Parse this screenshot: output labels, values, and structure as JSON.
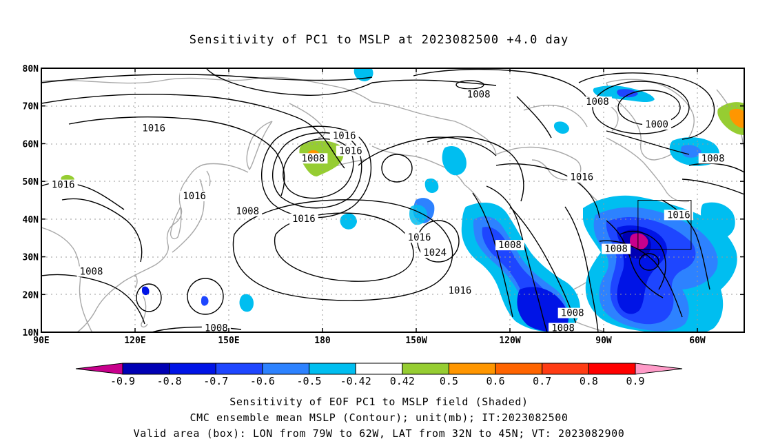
{
  "title": "Sensitivity of PC1 to MSLP at 2023082500 +4.0 day",
  "map": {
    "lat_ticks": [
      "80N",
      "70N",
      "60N",
      "50N",
      "40N",
      "30N",
      "20N",
      "10N"
    ],
    "lon_ticks": [
      "90E",
      "120E",
      "150E",
      "180",
      "150W",
      "120W",
      "90W",
      "60W"
    ],
    "contour_labels": [
      {
        "text": "1008",
        "lon": 230,
        "lat": 73
      },
      {
        "text": "1008",
        "lon": 268,
        "lat": 71
      },
      {
        "text": "1000",
        "lon": 287,
        "lat": 65
      },
      {
        "text": "1016",
        "lon": 126,
        "lat": 64
      },
      {
        "text": "1016",
        "lon": 187,
        "lat": 62
      },
      {
        "text": "1016",
        "lon": 189,
        "lat": 58
      },
      {
        "text": "1008",
        "lon": 177,
        "lat": 56
      },
      {
        "text": "1008",
        "lon": 305,
        "lat": 56
      },
      {
        "text": "1016",
        "lon": 97,
        "lat": 49
      },
      {
        "text": "1016",
        "lon": 139,
        "lat": 46
      },
      {
        "text": "1016",
        "lon": 263,
        "lat": 51
      },
      {
        "text": "1008",
        "lon": 156,
        "lat": 42
      },
      {
        "text": "1016",
        "lon": 174,
        "lat": 40
      },
      {
        "text": "1016",
        "lon": 294,
        "lat": 41
      },
      {
        "text": "1016",
        "lon": 211,
        "lat": 35
      },
      {
        "text": "1008",
        "lon": 240,
        "lat": 33
      },
      {
        "text": "1008",
        "lon": 274,
        "lat": 32
      },
      {
        "text": "1024",
        "lon": 216,
        "lat": 31
      },
      {
        "text": "1008",
        "lon": 106,
        "lat": 26
      },
      {
        "text": "1016",
        "lon": 224,
        "lat": 21
      },
      {
        "text": "1008",
        "lon": 260,
        "lat": 15
      },
      {
        "text": "1008",
        "lon": 257,
        "lat": 11
      },
      {
        "text": "1008",
        "lon": 146,
        "lat": 11
      }
    ],
    "valid_box": {
      "lon_min": 281,
      "lon_max": 298,
      "lat_min": 32,
      "lat_max": 45
    }
  },
  "colorbar": {
    "labels": [
      "-0.9",
      "-0.8",
      "-0.7",
      "-0.6",
      "-0.5",
      "-0.42",
      "0.42",
      "0.5",
      "0.6",
      "0.7",
      "0.8",
      "0.9"
    ],
    "colors": [
      "#c8008c",
      "#0000b4",
      "#0014e6",
      "#1e46ff",
      "#2d82ff",
      "#00bef0",
      "#ffffff",
      "#96cd32",
      "#ff9600",
      "#ff6400",
      "#ff3c14",
      "#ff0000",
      "#ff9bc8"
    ]
  },
  "captions": {
    "line1": "Sensitivity of EOF PC1 to MSLP field (Shaded)",
    "line2": "CMC ensemble mean MSLP (Contour); unit(mb); IT:2023082500",
    "line3": "Valid area (box): LON from 79W to 62W, LAT from 32N to 45N; VT: 2023082900"
  }
}
